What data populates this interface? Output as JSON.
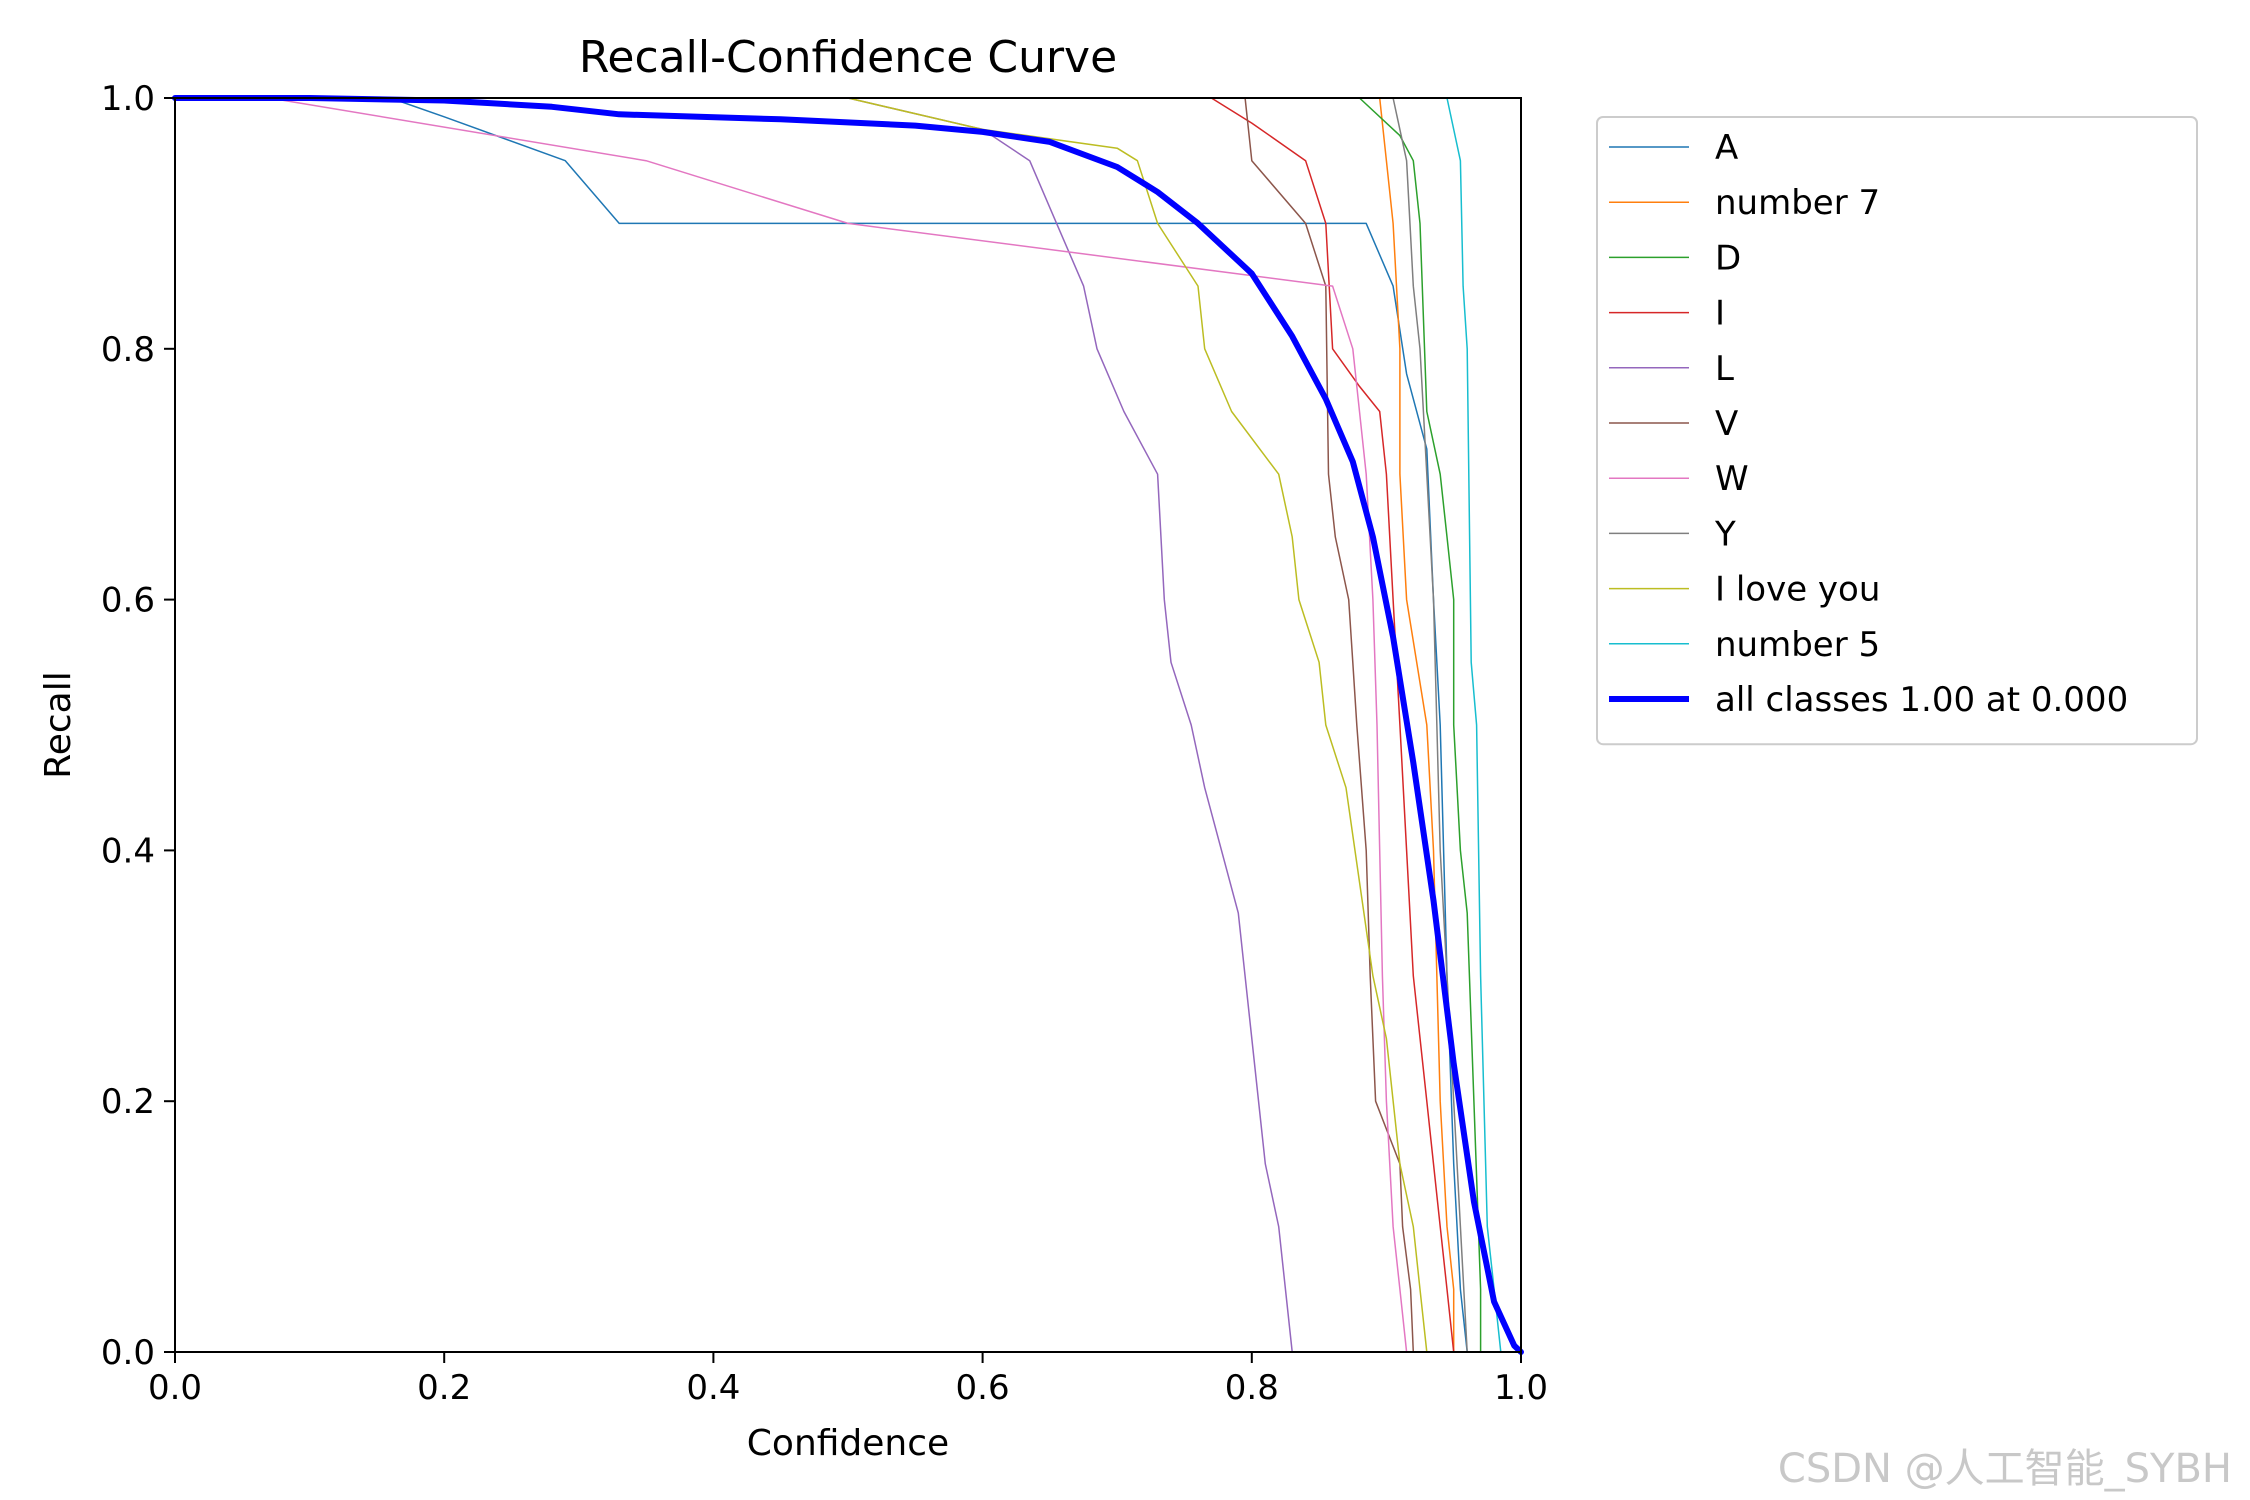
{
  "watermark": "CSDN @人工智能_SYBH",
  "chart_data": {
    "type": "line",
    "title": "Recall-Confidence Curve",
    "xlabel": "Confidence",
    "ylabel": "Recall",
    "xlim": [
      0,
      1
    ],
    "ylim": [
      0,
      1
    ],
    "xticks": [
      "0.0",
      "0.2",
      "0.4",
      "0.6",
      "0.8",
      "1.0"
    ],
    "yticks": [
      "0.0",
      "0.2",
      "0.4",
      "0.6",
      "0.8",
      "1.0"
    ],
    "grid": false,
    "legend_position": "outside-right-top",
    "series": [
      {
        "name": "A",
        "color": "#1f77b4",
        "width": 1.5,
        "points": [
          [
            0,
            1
          ],
          [
            0.16,
            1
          ],
          [
            0.2,
            0.985
          ],
          [
            0.29,
            0.95
          ],
          [
            0.33,
            0.9
          ],
          [
            0.6,
            0.9
          ],
          [
            0.885,
            0.9
          ],
          [
            0.905,
            0.85
          ],
          [
            0.915,
            0.78
          ],
          [
            0.93,
            0.72
          ],
          [
            0.935,
            0.6
          ],
          [
            0.94,
            0.5
          ],
          [
            0.945,
            0.3
          ],
          [
            0.95,
            0.15
          ],
          [
            0.955,
            0.05
          ],
          [
            0.96,
            0
          ]
        ]
      },
      {
        "name": "number 7",
        "color": "#ff7f0e",
        "width": 1.5,
        "points": [
          [
            0.895,
            1
          ],
          [
            0.9,
            0.95
          ],
          [
            0.905,
            0.9
          ],
          [
            0.91,
            0.8
          ],
          [
            0.91,
            0.7
          ],
          [
            0.915,
            0.6
          ],
          [
            0.93,
            0.5
          ],
          [
            0.935,
            0.4
          ],
          [
            0.94,
            0.2
          ],
          [
            0.945,
            0.1
          ],
          [
            0.95,
            0.05
          ],
          [
            0.95,
            0
          ]
        ]
      },
      {
        "name": "D",
        "color": "#2ca02c",
        "width": 1.5,
        "points": [
          [
            0.88,
            1
          ],
          [
            0.91,
            0.97
          ],
          [
            0.92,
            0.95
          ],
          [
            0.925,
            0.9
          ],
          [
            0.93,
            0.75
          ],
          [
            0.94,
            0.7
          ],
          [
            0.945,
            0.65
          ],
          [
            0.95,
            0.6
          ],
          [
            0.95,
            0.5
          ],
          [
            0.955,
            0.4
          ],
          [
            0.96,
            0.35
          ],
          [
            0.965,
            0.2
          ],
          [
            0.97,
            0.05
          ],
          [
            0.97,
            0
          ]
        ]
      },
      {
        "name": "I",
        "color": "#d62728",
        "width": 1.5,
        "points": [
          [
            0.77,
            1
          ],
          [
            0.8,
            0.98
          ],
          [
            0.84,
            0.95
          ],
          [
            0.855,
            0.9
          ],
          [
            0.86,
            0.8
          ],
          [
            0.88,
            0.77
          ],
          [
            0.895,
            0.75
          ],
          [
            0.9,
            0.7
          ],
          [
            0.905,
            0.6
          ],
          [
            0.91,
            0.5
          ],
          [
            0.915,
            0.4
          ],
          [
            0.92,
            0.3
          ],
          [
            0.93,
            0.2
          ],
          [
            0.94,
            0.1
          ],
          [
            0.945,
            0.05
          ],
          [
            0.95,
            0
          ]
        ]
      },
      {
        "name": "L",
        "color": "#9467bd",
        "width": 1.5,
        "points": [
          [
            0.5,
            1
          ],
          [
            0.6,
            0.975
          ],
          [
            0.635,
            0.95
          ],
          [
            0.655,
            0.9
          ],
          [
            0.675,
            0.85
          ],
          [
            0.685,
            0.8
          ],
          [
            0.705,
            0.75
          ],
          [
            0.73,
            0.7
          ],
          [
            0.735,
            0.6
          ],
          [
            0.74,
            0.55
          ],
          [
            0.755,
            0.5
          ],
          [
            0.765,
            0.45
          ],
          [
            0.79,
            0.35
          ],
          [
            0.8,
            0.25
          ],
          [
            0.81,
            0.15
          ],
          [
            0.82,
            0.1
          ],
          [
            0.83,
            0
          ],
          [
            0.915,
            0
          ]
        ]
      },
      {
        "name": "V",
        "color": "#8c564b",
        "width": 1.5,
        "points": [
          [
            0.795,
            1
          ],
          [
            0.8,
            0.95
          ],
          [
            0.84,
            0.9
          ],
          [
            0.855,
            0.85
          ],
          [
            0.857,
            0.7
          ],
          [
            0.862,
            0.65
          ],
          [
            0.872,
            0.6
          ],
          [
            0.875,
            0.55
          ],
          [
            0.878,
            0.5
          ],
          [
            0.885,
            0.4
          ],
          [
            0.888,
            0.3
          ],
          [
            0.892,
            0.2
          ],
          [
            0.91,
            0.15
          ],
          [
            0.912,
            0.1
          ],
          [
            0.918,
            0.05
          ],
          [
            0.92,
            0
          ]
        ]
      },
      {
        "name": "W",
        "color": "#e377c2",
        "width": 1.5,
        "points": [
          [
            0,
            1
          ],
          [
            0.07,
            1
          ],
          [
            0.35,
            0.95
          ],
          [
            0.5,
            0.9
          ],
          [
            0.86,
            0.85
          ],
          [
            0.875,
            0.8
          ],
          [
            0.885,
            0.7
          ],
          [
            0.89,
            0.6
          ],
          [
            0.893,
            0.5
          ],
          [
            0.895,
            0.4
          ],
          [
            0.897,
            0.3
          ],
          [
            0.9,
            0.2
          ],
          [
            0.905,
            0.1
          ],
          [
            0.91,
            0.05
          ],
          [
            0.915,
            0
          ]
        ]
      },
      {
        "name": "Y",
        "color": "#7f7f7f",
        "width": 1.5,
        "points": [
          [
            0.905,
            1
          ],
          [
            0.915,
            0.95
          ],
          [
            0.92,
            0.85
          ],
          [
            0.925,
            0.8
          ],
          [
            0.93,
            0.7
          ],
          [
            0.935,
            0.6
          ],
          [
            0.94,
            0.4
          ],
          [
            0.945,
            0.3
          ],
          [
            0.95,
            0.2
          ],
          [
            0.955,
            0.1
          ],
          [
            0.96,
            0
          ]
        ]
      },
      {
        "name": "I love you",
        "color": "#bcbd22",
        "width": 1.5,
        "points": [
          [
            0.5,
            1
          ],
          [
            0.6,
            0.975
          ],
          [
            0.7,
            0.96
          ],
          [
            0.715,
            0.95
          ],
          [
            0.73,
            0.9
          ],
          [
            0.76,
            0.85
          ],
          [
            0.765,
            0.8
          ],
          [
            0.785,
            0.75
          ],
          [
            0.82,
            0.7
          ],
          [
            0.83,
            0.65
          ],
          [
            0.835,
            0.6
          ],
          [
            0.85,
            0.55
          ],
          [
            0.855,
            0.5
          ],
          [
            0.87,
            0.45
          ],
          [
            0.89,
            0.3
          ],
          [
            0.9,
            0.25
          ],
          [
            0.91,
            0.15
          ],
          [
            0.92,
            0.1
          ],
          [
            0.925,
            0.05
          ],
          [
            0.93,
            0
          ]
        ]
      },
      {
        "name": "number 5",
        "color": "#17becf",
        "width": 1.5,
        "points": [
          [
            0.945,
            1
          ],
          [
            0.955,
            0.95
          ],
          [
            0.957,
            0.85
          ],
          [
            0.96,
            0.8
          ],
          [
            0.963,
            0.55
          ],
          [
            0.967,
            0.5
          ],
          [
            0.97,
            0.3
          ],
          [
            0.975,
            0.1
          ],
          [
            0.98,
            0.05
          ],
          [
            0.985,
            0
          ]
        ]
      },
      {
        "name": "all classes 1.00 at 0.000",
        "color": "#0000ff",
        "width": 6,
        "points": [
          [
            0,
            1
          ],
          [
            0.1,
            1
          ],
          [
            0.2,
            0.998
          ],
          [
            0.28,
            0.993
          ],
          [
            0.33,
            0.987
          ],
          [
            0.45,
            0.983
          ],
          [
            0.55,
            0.978
          ],
          [
            0.6,
            0.973
          ],
          [
            0.65,
            0.965
          ],
          [
            0.7,
            0.945
          ],
          [
            0.73,
            0.925
          ],
          [
            0.76,
            0.9
          ],
          [
            0.8,
            0.86
          ],
          [
            0.83,
            0.81
          ],
          [
            0.855,
            0.76
          ],
          [
            0.875,
            0.71
          ],
          [
            0.89,
            0.65
          ],
          [
            0.905,
            0.57
          ],
          [
            0.92,
            0.47
          ],
          [
            0.935,
            0.36
          ],
          [
            0.95,
            0.23
          ],
          [
            0.965,
            0.12
          ],
          [
            0.98,
            0.04
          ],
          [
            0.995,
            0.005
          ],
          [
            1,
            0
          ]
        ]
      }
    ]
  }
}
